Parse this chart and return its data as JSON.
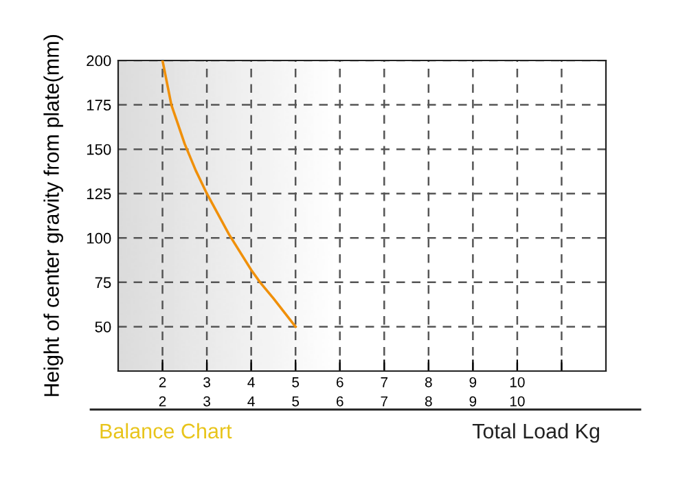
{
  "chart_data": {
    "type": "line",
    "title": "Balance Chart",
    "xlabel": "Total Load Kg",
    "ylabel": "Height of center gravity from plate(mm)",
    "x": [
      2,
      2.2,
      2.5,
      2.75,
      3,
      3.5,
      4,
      4.2,
      4.5,
      5
    ],
    "series": [
      {
        "color": "#f0900a",
        "values": [
          200,
          175,
          153,
          138,
          125,
          102,
          82,
          75,
          66,
          50
        ]
      }
    ],
    "xlim": [
      1,
      12
    ],
    "ylim": [
      25,
      200
    ],
    "xticks": [
      2,
      3,
      4,
      5,
      6,
      7,
      8,
      9,
      10,
      {
        "value": 11,
        "label": null
      }
    ],
    "x2lim": [
      1,
      12
    ],
    "x2ticks": [
      2,
      3,
      4,
      5,
      6,
      7,
      8,
      9,
      10
    ],
    "yticks": [
      50,
      75,
      100,
      125,
      150,
      175,
      200
    ],
    "grid": true,
    "line_style": "solid",
    "marker": "none"
  }
}
